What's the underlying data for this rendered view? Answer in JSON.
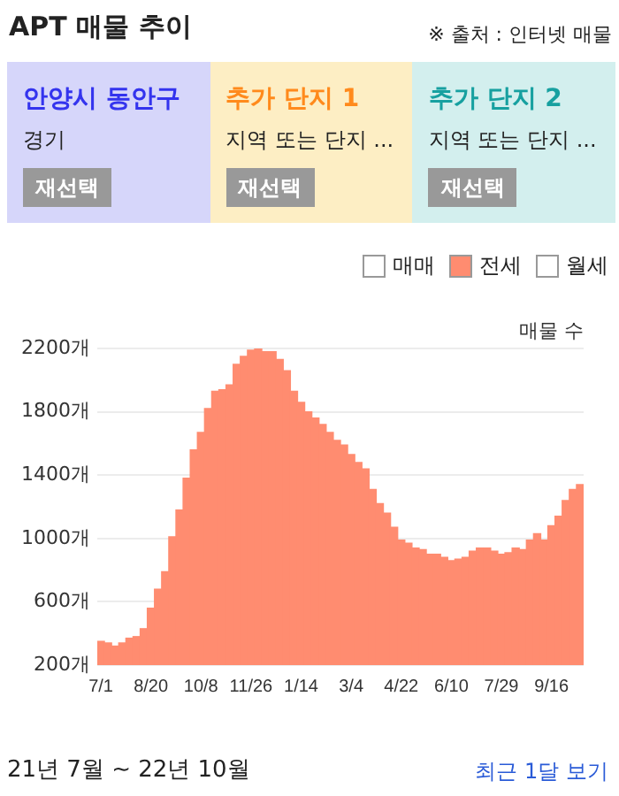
{
  "chart_data": {
    "type": "bar",
    "title": "APT 매물 추이",
    "ylabel": "매물 수",
    "categories": [
      "7/1",
      null,
      null,
      null,
      null,
      null,
      null,
      "8/20",
      null,
      null,
      null,
      null,
      null,
      null,
      "10/8",
      null,
      null,
      null,
      null,
      null,
      null,
      "11/26",
      null,
      null,
      null,
      null,
      null,
      null,
      "1/14",
      null,
      null,
      null,
      null,
      null,
      null,
      "3/4",
      null,
      null,
      null,
      null,
      null,
      null,
      "4/22",
      null,
      null,
      null,
      null,
      null,
      null,
      "6/10",
      null,
      null,
      null,
      null,
      null,
      null,
      "7/29",
      null,
      null,
      null,
      null,
      null,
      null,
      "9/16",
      null,
      null,
      null,
      null
    ],
    "series": [
      {
        "name": "전세",
        "color": "#ff8c70",
        "values": [
          350,
          340,
          320,
          340,
          370,
          380,
          430,
          560,
          680,
          790,
          1010,
          1180,
          1380,
          1560,
          1670,
          1820,
          1930,
          1940,
          1970,
          2100,
          2150,
          2190,
          2200,
          2180,
          2180,
          2130,
          2060,
          1930,
          1860,
          1800,
          1760,
          1720,
          1670,
          1620,
          1590,
          1530,
          1480,
          1440,
          1310,
          1220,
          1160,
          1070,
          990,
          970,
          940,
          930,
          900,
          900,
          880,
          860,
          870,
          880,
          920,
          940,
          940,
          920,
          900,
          910,
          940,
          930,
          990,
          1030,
          990,
          1080,
          1140,
          1240,
          1310,
          1340
        ]
      }
    ],
    "ylim": [
      200,
      2200
    ],
    "yticks": [
      {
        "value": 200,
        "label": "200개"
      },
      {
        "value": 600,
        "label": "600개"
      },
      {
        "value": 1000,
        "label": "1000개"
      },
      {
        "value": 1400,
        "label": "1400개"
      },
      {
        "value": 1800,
        "label": "1800개"
      },
      {
        "value": 2200,
        "label": "2200개"
      }
    ],
    "grid": "y",
    "legend": "top right",
    "annotations": [
      "※ 출처 : 인터넷 매물",
      "안양시 동안구",
      "경기",
      "재선택",
      "추가 단지 1",
      "지역 또는 단지 ...",
      "재선택",
      "추가 단지 2",
      "지역 또는 단지 ...",
      "재선택",
      "매매",
      "월세",
      "21년 7월 ~ 22년 10월",
      "최근 1달 보기"
    ]
  }
}
